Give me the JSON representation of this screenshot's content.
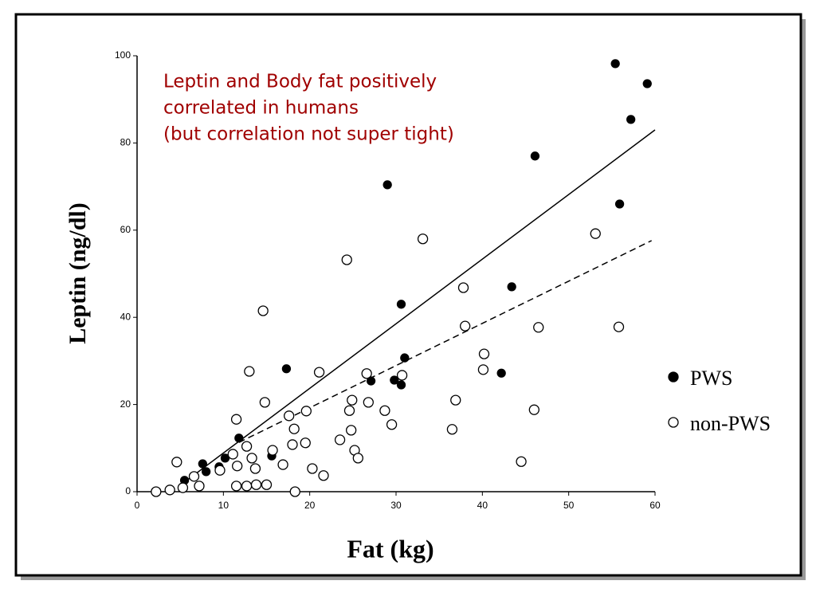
{
  "chart_data": {
    "type": "scatter",
    "annotation": [
      "Leptin and Body fat positively",
      "correlated in humans",
      "(but correlation not super tight)"
    ],
    "xlabel": "Fat (kg)",
    "ylabel": "Leptin (ng/dl)",
    "xlim": [
      0,
      60
    ],
    "ylim": [
      0,
      100
    ],
    "xticks": [
      0,
      10,
      20,
      30,
      40,
      50,
      60
    ],
    "yticks": [
      0,
      20,
      40,
      60,
      80,
      100
    ],
    "legend": "right",
    "series": [
      {
        "name": "PWS",
        "color": "#000000",
        "filled": true,
        "x": [
          55.4,
          59.1,
          57.2,
          46.1,
          29.0,
          55.9,
          43.4,
          30.6,
          31.0,
          17.3,
          42.2,
          27.1,
          29.8,
          30.6,
          11.8,
          15.6,
          10.2,
          7.6,
          8.0,
          5.5,
          9.5
        ],
        "values": [
          98.2,
          93.6,
          85.4,
          77,
          70.4,
          66,
          47,
          43,
          30.7,
          28.2,
          27.2,
          25.4,
          25.6,
          24.5,
          12.3,
          8.2,
          7.7,
          6.4,
          4.6,
          2.6,
          5.7
        ]
      },
      {
        "name": "non-PWS",
        "color": "#000000",
        "filled": false,
        "x": [
          53.1,
          33.1,
          24.3,
          37.8,
          14.6,
          38.0,
          46.5,
          55.8,
          40.2,
          40.1,
          13.0,
          21.1,
          26.6,
          30.7,
          36.9,
          24.9,
          26.8,
          14.8,
          28.7,
          24.6,
          46.0,
          19.6,
          17.6,
          11.5,
          29.5,
          24.8,
          36.5,
          18.2,
          23.5,
          19.5,
          18.0,
          12.7,
          15.7,
          25.2,
          11.1,
          13.3,
          25.6,
          16.9,
          4.6,
          44.5,
          13.7,
          20.3,
          9.6,
          21.6,
          11.6,
          11.5,
          12.7,
          13.8,
          15.0,
          7.2,
          5.3,
          3.8,
          2.2,
          18.3,
          6.6
        ],
        "values": [
          59.2,
          58,
          53.2,
          46.8,
          41.5,
          38,
          37.7,
          37.8,
          31.6,
          28,
          27.6,
          27.4,
          27.1,
          26.7,
          21,
          21,
          20.5,
          20.5,
          18.6,
          18.6,
          18.8,
          18.5,
          17.4,
          16.6,
          15.4,
          14.1,
          14.3,
          14.4,
          11.9,
          11.2,
          10.8,
          10.4,
          9.5,
          9.5,
          8.6,
          7.7,
          7.7,
          6.2,
          6.8,
          6.9,
          5.3,
          5.3,
          4.9,
          3.7,
          5.9,
          1.3,
          1.3,
          1.6,
          1.6,
          1.3,
          0.9,
          0.4,
          0,
          0,
          3.5
        ]
      }
    ],
    "fit_lines": [
      {
        "style": "solid",
        "x": [
          5.5,
          60
        ],
        "values": [
          2.2,
          83
        ]
      },
      {
        "style": "dashed",
        "x": [
          11.8,
          59.6
        ],
        "values": [
          11.3,
          57.6
        ]
      }
    ]
  }
}
